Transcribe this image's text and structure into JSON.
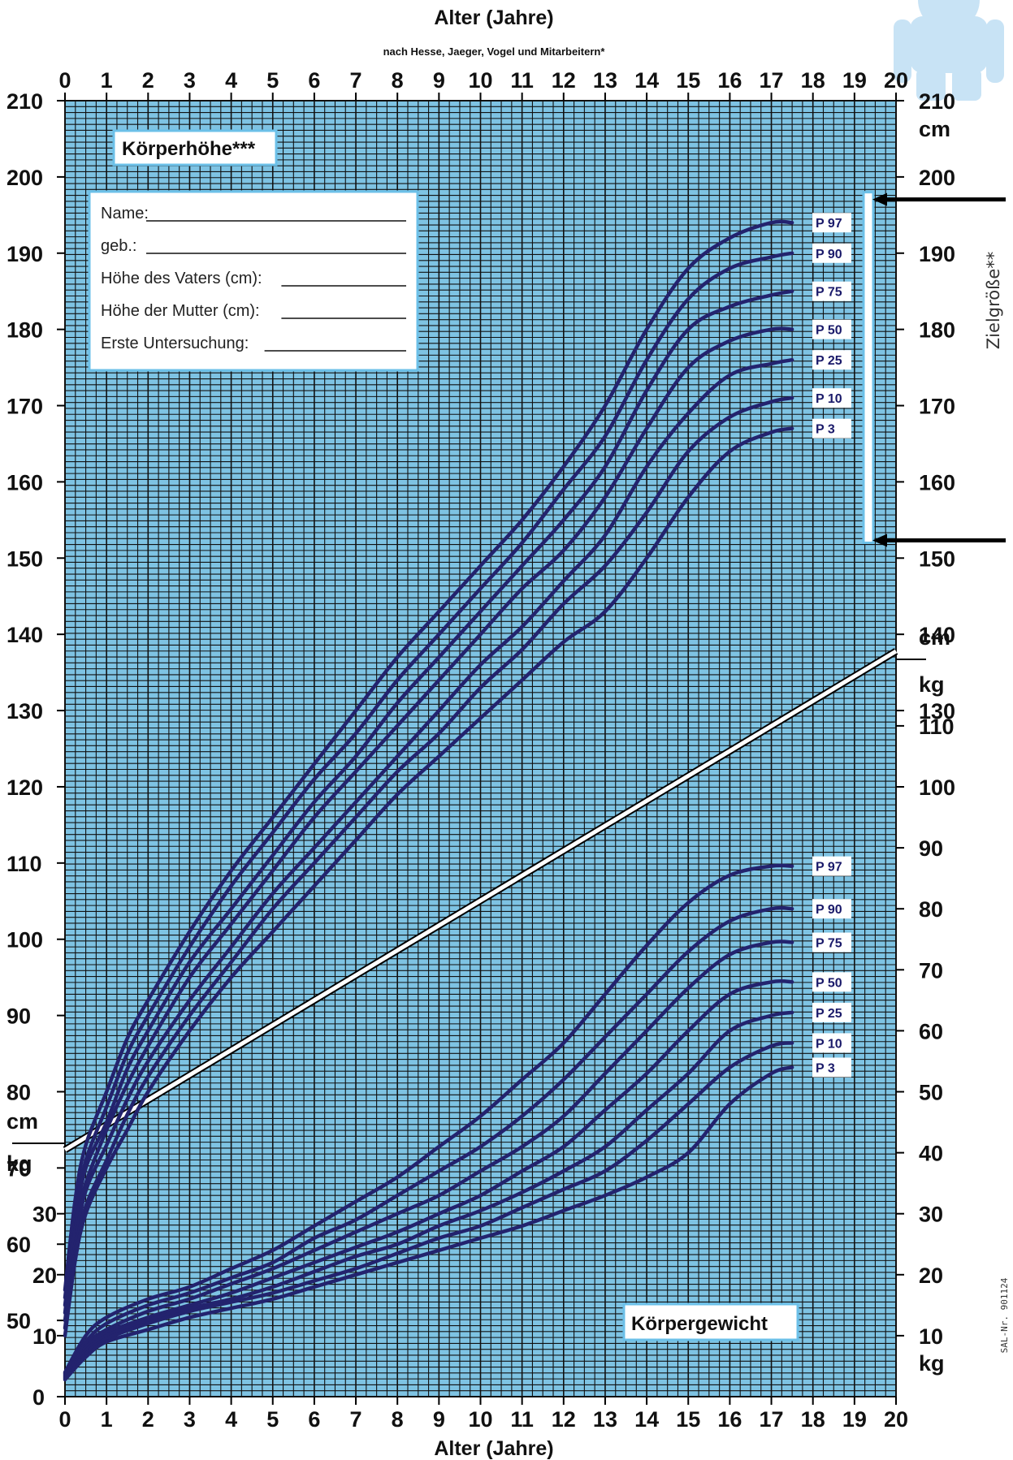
{
  "header": {
    "title": "Alter (Jahre)",
    "subtitle": "nach Hesse, Jaeger, Vogel und Mitarbeitern*"
  },
  "footer": {
    "xlabel": "Alter (Jahre)"
  },
  "panels": {
    "height_title": "Körperhöhe***",
    "weight_title": "Körpergewicht",
    "target_label": "Zielgröße**",
    "catalog_number": "SAL-Nr. 901124"
  },
  "form": {
    "fields": [
      "Name:",
      "geb.:",
      "Höhe des Vaters (cm):",
      "Höhe der Mutter (cm):",
      "Erste Untersuchung:"
    ]
  },
  "units": {
    "cm": "cm",
    "kg": "kg"
  },
  "colors": {
    "grid_background": "#7ec3e3",
    "grid_line": "#111111",
    "curve": "#23236e",
    "label_bg": "#ffffff"
  },
  "chart_data": [
    {
      "type": "line",
      "name": "height",
      "title": "Körperhöhe***",
      "xlabel": "Alter (Jahre)",
      "ylabel": "cm",
      "xlim": [
        0,
        20
      ],
      "ylim": [
        40,
        210
      ],
      "x_ticks": [
        "0",
        "1",
        "2",
        "3",
        "4",
        "5",
        "6",
        "7",
        "8",
        "9",
        "10",
        "11",
        "12",
        "13",
        "14",
        "15",
        "16",
        "17",
        "18",
        "19",
        "20"
      ],
      "y_ticks": [
        "50",
        "60",
        "70",
        "80",
        "90",
        "100",
        "110",
        "120",
        "130",
        "140",
        "150",
        "160",
        "170",
        "180",
        "190",
        "200",
        "210"
      ],
      "x": [
        0,
        0.25,
        0.5,
        1,
        1.5,
        2,
        3,
        4,
        5,
        6,
        7,
        8,
        9,
        10,
        11,
        12,
        13,
        14,
        15,
        16,
        17,
        17.5
      ],
      "series": [
        {
          "name": "P 97",
          "values": [
            54,
            66,
            73,
            80,
            87,
            92,
            101,
            109,
            116,
            123,
            130,
            137,
            143,
            149,
            155,
            162,
            170,
            180,
            188,
            192,
            194,
            194
          ]
        },
        {
          "name": "P 90",
          "values": [
            53,
            64,
            71,
            78,
            85,
            90,
            99,
            107,
            114,
            121,
            127,
            134,
            140,
            146,
            152,
            159,
            166,
            176,
            184,
            188,
            189.5,
            190
          ]
        },
        {
          "name": "P 75",
          "values": [
            52,
            63,
            70,
            76,
            83,
            88,
            97,
            104,
            111,
            118,
            124,
            131,
            137,
            143,
            149,
            155,
            162,
            172,
            180,
            183,
            184.5,
            185
          ]
        },
        {
          "name": "P 50",
          "values": [
            51,
            62,
            68,
            75,
            81,
            86,
            95,
            102,
            109,
            116,
            122,
            128,
            134,
            140,
            146,
            151,
            158,
            167,
            175,
            178.5,
            180,
            180
          ]
        },
        {
          "name": "P 25",
          "values": [
            50,
            60,
            67,
            73,
            79,
            84,
            92,
            99,
            106,
            112,
            118,
            124,
            130,
            136,
            141,
            147,
            153,
            162,
            169,
            174,
            175.5,
            176
          ]
        },
        {
          "name": "P 10",
          "values": [
            49,
            59,
            65,
            71,
            77,
            82,
            90,
            97,
            104,
            110,
            116,
            122,
            127,
            133,
            138,
            144,
            149,
            156,
            164,
            168.5,
            170.5,
            171
          ]
        },
        {
          "name": "P 3",
          "values": [
            48,
            58,
            64,
            70,
            75,
            80,
            88,
            95,
            101,
            107,
            113,
            119,
            124,
            129,
            134,
            139,
            143,
            150,
            158,
            164,
            166.5,
            167
          ]
        }
      ],
      "target_range": [
        152,
        198
      ],
      "legend": "right"
    },
    {
      "type": "line",
      "name": "weight",
      "title": "Körpergewicht",
      "xlabel": "Alter (Jahre)",
      "ylabel": "kg",
      "xlim": [
        0,
        20
      ],
      "ylim": [
        0,
        120
      ],
      "x_ticks": [
        "0",
        "1",
        "2",
        "3",
        "4",
        "5",
        "6",
        "7",
        "8",
        "9",
        "10",
        "11",
        "12",
        "13",
        "14",
        "15",
        "16",
        "17",
        "18",
        "19",
        "20"
      ],
      "y_ticks": [
        "0",
        "10",
        "20",
        "30",
        "40",
        "50",
        "60",
        "70",
        "80",
        "90",
        "100",
        "110"
      ],
      "x": [
        0,
        0.5,
        1,
        2,
        3,
        4,
        5,
        6,
        7,
        8,
        9,
        10,
        11,
        12,
        13,
        14,
        15,
        16,
        17,
        17.5
      ],
      "series": [
        {
          "name": "P 97",
          "values": [
            4,
            10,
            13,
            16,
            18,
            21,
            24,
            28,
            32,
            36,
            41,
            46,
            52,
            58,
            66,
            74,
            81,
            85.5,
            87,
            87
          ]
        },
        {
          "name": "P 90",
          "values": [
            3.8,
            9,
            12,
            15,
            17,
            19.5,
            22,
            26,
            29,
            33,
            37,
            41,
            46,
            52,
            59,
            66,
            73,
            78,
            80,
            80
          ]
        },
        {
          "name": "P 75",
          "values": [
            3.6,
            8.5,
            11,
            14,
            16,
            18.5,
            21,
            24,
            27,
            30,
            33,
            37,
            41,
            46,
            53,
            60,
            67,
            72.5,
            74.5,
            74.5
          ]
        },
        {
          "name": "P 50",
          "values": [
            3.4,
            8,
            10.5,
            13,
            15,
            17,
            19.5,
            22,
            24.5,
            27,
            30,
            33,
            37,
            41,
            47,
            53,
            60,
            66,
            68,
            68
          ]
        },
        {
          "name": "P 25",
          "values": [
            3.2,
            7.5,
            10,
            12.5,
            14.5,
            16,
            18,
            20.5,
            23,
            25,
            28,
            30.5,
            33.5,
            37,
            41,
            47,
            53,
            60,
            62.5,
            63
          ]
        },
        {
          "name": "P 10",
          "values": [
            3,
            7,
            9.5,
            12,
            14,
            15.5,
            17,
            19,
            21,
            23.5,
            26,
            28,
            31,
            34,
            37,
            42,
            48,
            54,
            57.5,
            58
          ]
        },
        {
          "name": "P 3",
          "values": [
            2.8,
            6.5,
            9,
            11,
            13,
            14.5,
            16,
            18,
            20,
            22,
            24,
            26,
            28,
            30.5,
            33,
            36,
            40,
            48,
            53,
            54
          ]
        }
      ],
      "legend": "right"
    }
  ]
}
